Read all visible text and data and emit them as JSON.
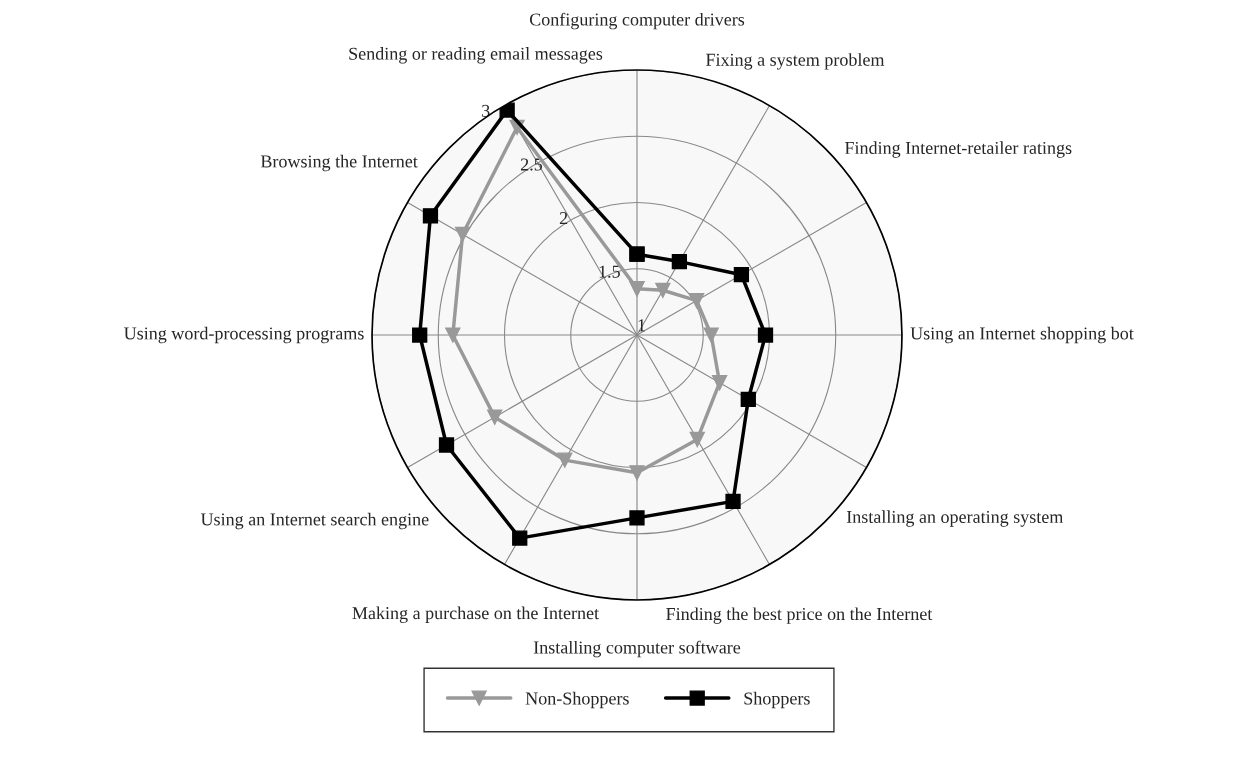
{
  "chart_data": {
    "type": "radar",
    "categories": [
      "Configuring computer drivers",
      "Fixing a system problem",
      "Finding Internet-retailer ratings",
      "Using an Internet shopping bot",
      "Installing an operating system",
      "Finding the best price on the Internet",
      "Installing computer software",
      "Making a purchase on the Internet",
      "Using an Internet search engine",
      "Using word-processing programs",
      "Browsing the Internet",
      "Sending or reading email messages"
    ],
    "series": [
      {
        "name": "Non-Shoppers",
        "color": "#999999",
        "marker": "triangle",
        "values": [
          1.35,
          1.39,
          1.52,
          1.56,
          1.72,
          1.91,
          2.04,
          2.09,
          2.24,
          2.39,
          2.52,
          2.81
        ]
      },
      {
        "name": "Shoppers",
        "color": "#000000",
        "marker": "square",
        "values": [
          1.61,
          1.64,
          1.91,
          1.97,
          1.97,
          2.45,
          2.38,
          2.77,
          2.66,
          2.64,
          2.8,
          2.96
        ]
      }
    ],
    "ylim": [
      1,
      3
    ],
    "yticks": [
      1,
      1.5,
      2,
      2.5,
      3
    ],
    "grid": true,
    "legend": "bottom"
  }
}
